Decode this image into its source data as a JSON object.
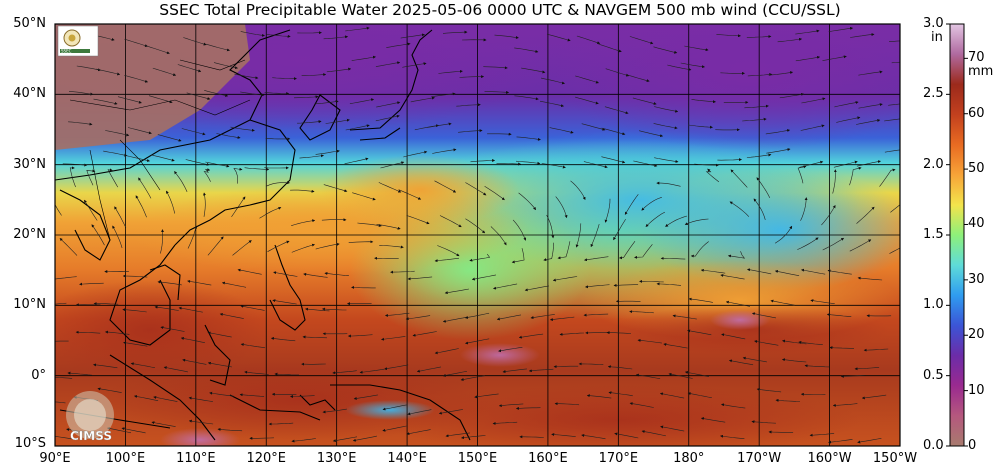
{
  "title": "SSEC Total Precipitable Water  2025-05-06 0000 UTC & NAVGEM 500 mb wind (CCU/SSL)",
  "latitudes": [
    {
      "label": "50°N",
      "value": 50
    },
    {
      "label": "40°N",
      "value": 40
    },
    {
      "label": "30°N",
      "value": 30
    },
    {
      "label": "20°N",
      "value": 20
    },
    {
      "label": "10°N",
      "value": 10
    },
    {
      "label": "0°",
      "value": 0
    },
    {
      "label": "10°S",
      "value": -10
    }
  ],
  "longitudes": [
    {
      "label": "90°E",
      "value": 90
    },
    {
      "label": "100°E",
      "value": 100
    },
    {
      "label": "110°E",
      "value": 110
    },
    {
      "label": "120°E",
      "value": 120
    },
    {
      "label": "130°E",
      "value": 130
    },
    {
      "label": "140°E",
      "value": 140
    },
    {
      "label": "150°E",
      "value": 150
    },
    {
      "label": "160°E",
      "value": 160
    },
    {
      "label": "170°E",
      "value": 170
    },
    {
      "label": "180°",
      "value": 180
    },
    {
      "label": "170°W",
      "value": 190
    },
    {
      "label": "160°W",
      "value": 200
    },
    {
      "label": "150°W",
      "value": 210
    }
  ],
  "colorbar": {
    "inch_unit": "in",
    "mm_unit": "mm",
    "inch_ticks": [
      {
        "label": "3.0",
        "value": 3.0
      },
      {
        "label": "2.5",
        "value": 2.5
      },
      {
        "label": "2.0",
        "value": 2.0
      },
      {
        "label": "1.5",
        "value": 1.5
      },
      {
        "label": "1.0",
        "value": 1.0
      },
      {
        "label": "0.5",
        "value": 0.5
      },
      {
        "label": "0.0",
        "value": 0.0
      }
    ],
    "mm_ticks": [
      {
        "label": "70",
        "value": 70
      },
      {
        "label": "60",
        "value": 60
      },
      {
        "label": "50",
        "value": 50
      },
      {
        "label": "40",
        "value": 40
      },
      {
        "label": "30",
        "value": 30
      },
      {
        "label": "20",
        "value": 20
      },
      {
        "label": "10",
        "value": 10
      },
      {
        "label": "0",
        "value": 0
      }
    ],
    "colors": [
      "#a87b6e",
      "#b5587e",
      "#9a2a90",
      "#6c2ca8",
      "#3b55d6",
      "#2f9cf0",
      "#5fdcd8",
      "#8ef07a",
      "#f3e44c",
      "#f7a338",
      "#e86b22",
      "#c2401e",
      "#9c2a1c",
      "#b06aa0",
      "#e3c6e3"
    ]
  },
  "logos": {
    "top_left": "SSEC",
    "bottom_left": "CIMSS"
  }
}
